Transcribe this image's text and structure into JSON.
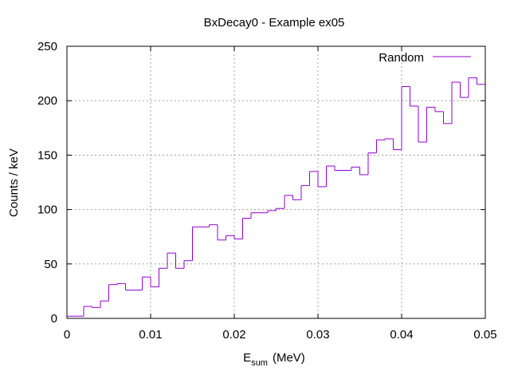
{
  "chart_data": {
    "type": "histogram",
    "title": "BxDecay0 - Example ex05",
    "xlabel_main": "E",
    "xlabel_sub": "sum",
    "xlabel_unit": "(MeV)",
    "ylabel": "Counts / keV",
    "xlim": [
      0,
      0.05
    ],
    "ylim": [
      0,
      250
    ],
    "xticks": [
      0,
      0.01,
      0.02,
      0.03,
      0.04,
      0.05
    ],
    "xtick_labels": [
      "0",
      "0.01",
      "0.02",
      "0.03",
      "0.04",
      "0.05"
    ],
    "yticks": [
      0,
      50,
      100,
      150,
      200,
      250
    ],
    "ytick_labels": [
      "0",
      "50",
      "100",
      "150",
      "200",
      "250"
    ],
    "grid": true,
    "legend_position": "top-right",
    "series": [
      {
        "name": "Random",
        "color": "#9400d3",
        "bin_width": 0.001,
        "x_start": 0,
        "values": [
          2,
          2,
          11,
          10,
          16,
          31,
          32,
          26,
          26,
          38,
          29,
          46,
          60,
          46,
          53,
          84,
          84,
          86,
          72,
          76,
          73,
          92,
          97,
          97,
          99,
          101,
          113,
          109,
          122,
          135,
          121,
          140,
          136,
          136,
          139,
          132,
          152,
          164,
          165,
          155,
          213,
          195,
          162,
          194,
          190,
          179,
          217,
          203,
          221,
          215
        ]
      }
    ]
  }
}
